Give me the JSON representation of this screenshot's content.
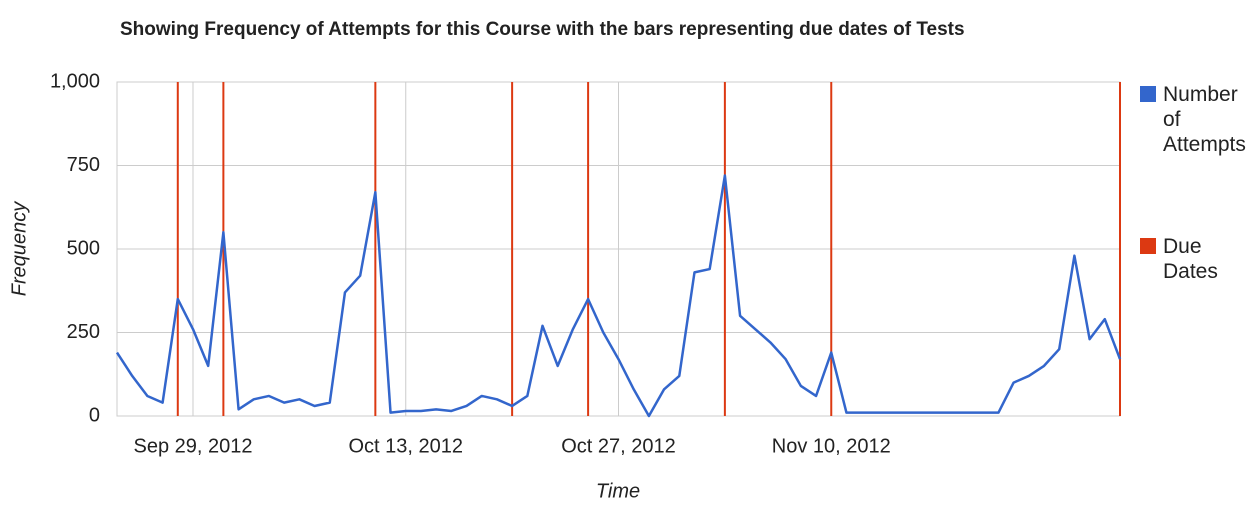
{
  "chart_data": {
    "type": "line",
    "title": "Showing Frequency of Attempts for this Course with the bars representing due dates of Tests",
    "x_label": "Time",
    "y_label": "Frequency",
    "x": [
      "2012-09-24",
      "2012-09-25",
      "2012-09-26",
      "2012-09-27",
      "2012-09-28",
      "2012-09-29",
      "2012-09-30",
      "2012-10-01",
      "2012-10-02",
      "2012-10-03",
      "2012-10-04",
      "2012-10-05",
      "2012-10-06",
      "2012-10-07",
      "2012-10-08",
      "2012-10-09",
      "2012-10-10",
      "2012-10-11",
      "2012-10-12",
      "2012-10-13",
      "2012-10-14",
      "2012-10-15",
      "2012-10-16",
      "2012-10-17",
      "2012-10-18",
      "2012-10-19",
      "2012-10-20",
      "2012-10-21",
      "2012-10-22",
      "2012-10-23",
      "2012-10-24",
      "2012-10-25",
      "2012-10-26",
      "2012-10-27",
      "2012-10-28",
      "2012-10-29",
      "2012-10-30",
      "2012-10-31",
      "2012-11-01",
      "2012-11-02",
      "2012-11-03",
      "2012-11-04",
      "2012-11-05",
      "2012-11-06",
      "2012-11-07",
      "2012-11-08",
      "2012-11-09",
      "2012-11-10",
      "2012-11-11",
      "2012-11-12",
      "2012-11-13",
      "2012-11-14",
      "2012-11-15",
      "2012-11-16",
      "2012-11-17",
      "2012-11-18",
      "2012-11-19",
      "2012-11-20",
      "2012-11-21",
      "2012-11-22",
      "2012-11-23",
      "2012-11-24",
      "2012-11-25",
      "2012-11-26",
      "2012-11-27",
      "2012-11-28",
      "2012-11-29"
    ],
    "series": [
      {
        "name": "Number of Attempts",
        "color": "#3366cc",
        "values": [
          190,
          120,
          60,
          40,
          350,
          260,
          150,
          550,
          20,
          50,
          60,
          40,
          50,
          30,
          40,
          370,
          420,
          670,
          10,
          15,
          15,
          20,
          15,
          30,
          60,
          50,
          30,
          60,
          270,
          150,
          260,
          350,
          250,
          170,
          80,
          0,
          80,
          120,
          430,
          440,
          720,
          300,
          260,
          220,
          170,
          90,
          60,
          190,
          10,
          10,
          10,
          10,
          10,
          10,
          10,
          10,
          10,
          10,
          10,
          100,
          120,
          150,
          200,
          480,
          230,
          290,
          170
        ]
      }
    ],
    "due_dates": {
      "name": "Due Dates",
      "color": "#dc3912",
      "x": [
        "2012-09-28",
        "2012-10-01",
        "2012-10-11",
        "2012-10-20",
        "2012-10-25",
        "2012-11-03",
        "2012-11-10",
        "2012-11-29"
      ]
    },
    "xlim": [
      "2012-09-24",
      "2012-11-29"
    ],
    "xticks": [
      {
        "value": "2012-09-29",
        "label": "Sep 29, 2012"
      },
      {
        "value": "2012-10-13",
        "label": "Oct 13, 2012"
      },
      {
        "value": "2012-10-27",
        "label": "Oct 27, 2012"
      },
      {
        "value": "2012-11-10",
        "label": "Nov 10, 2012"
      }
    ],
    "ylim": [
      0,
      1000
    ],
    "yticks": [
      0,
      250,
      500,
      750,
      {
        "value": 1000,
        "label": "1,000"
      }
    ],
    "grid": true,
    "legend": "right"
  }
}
